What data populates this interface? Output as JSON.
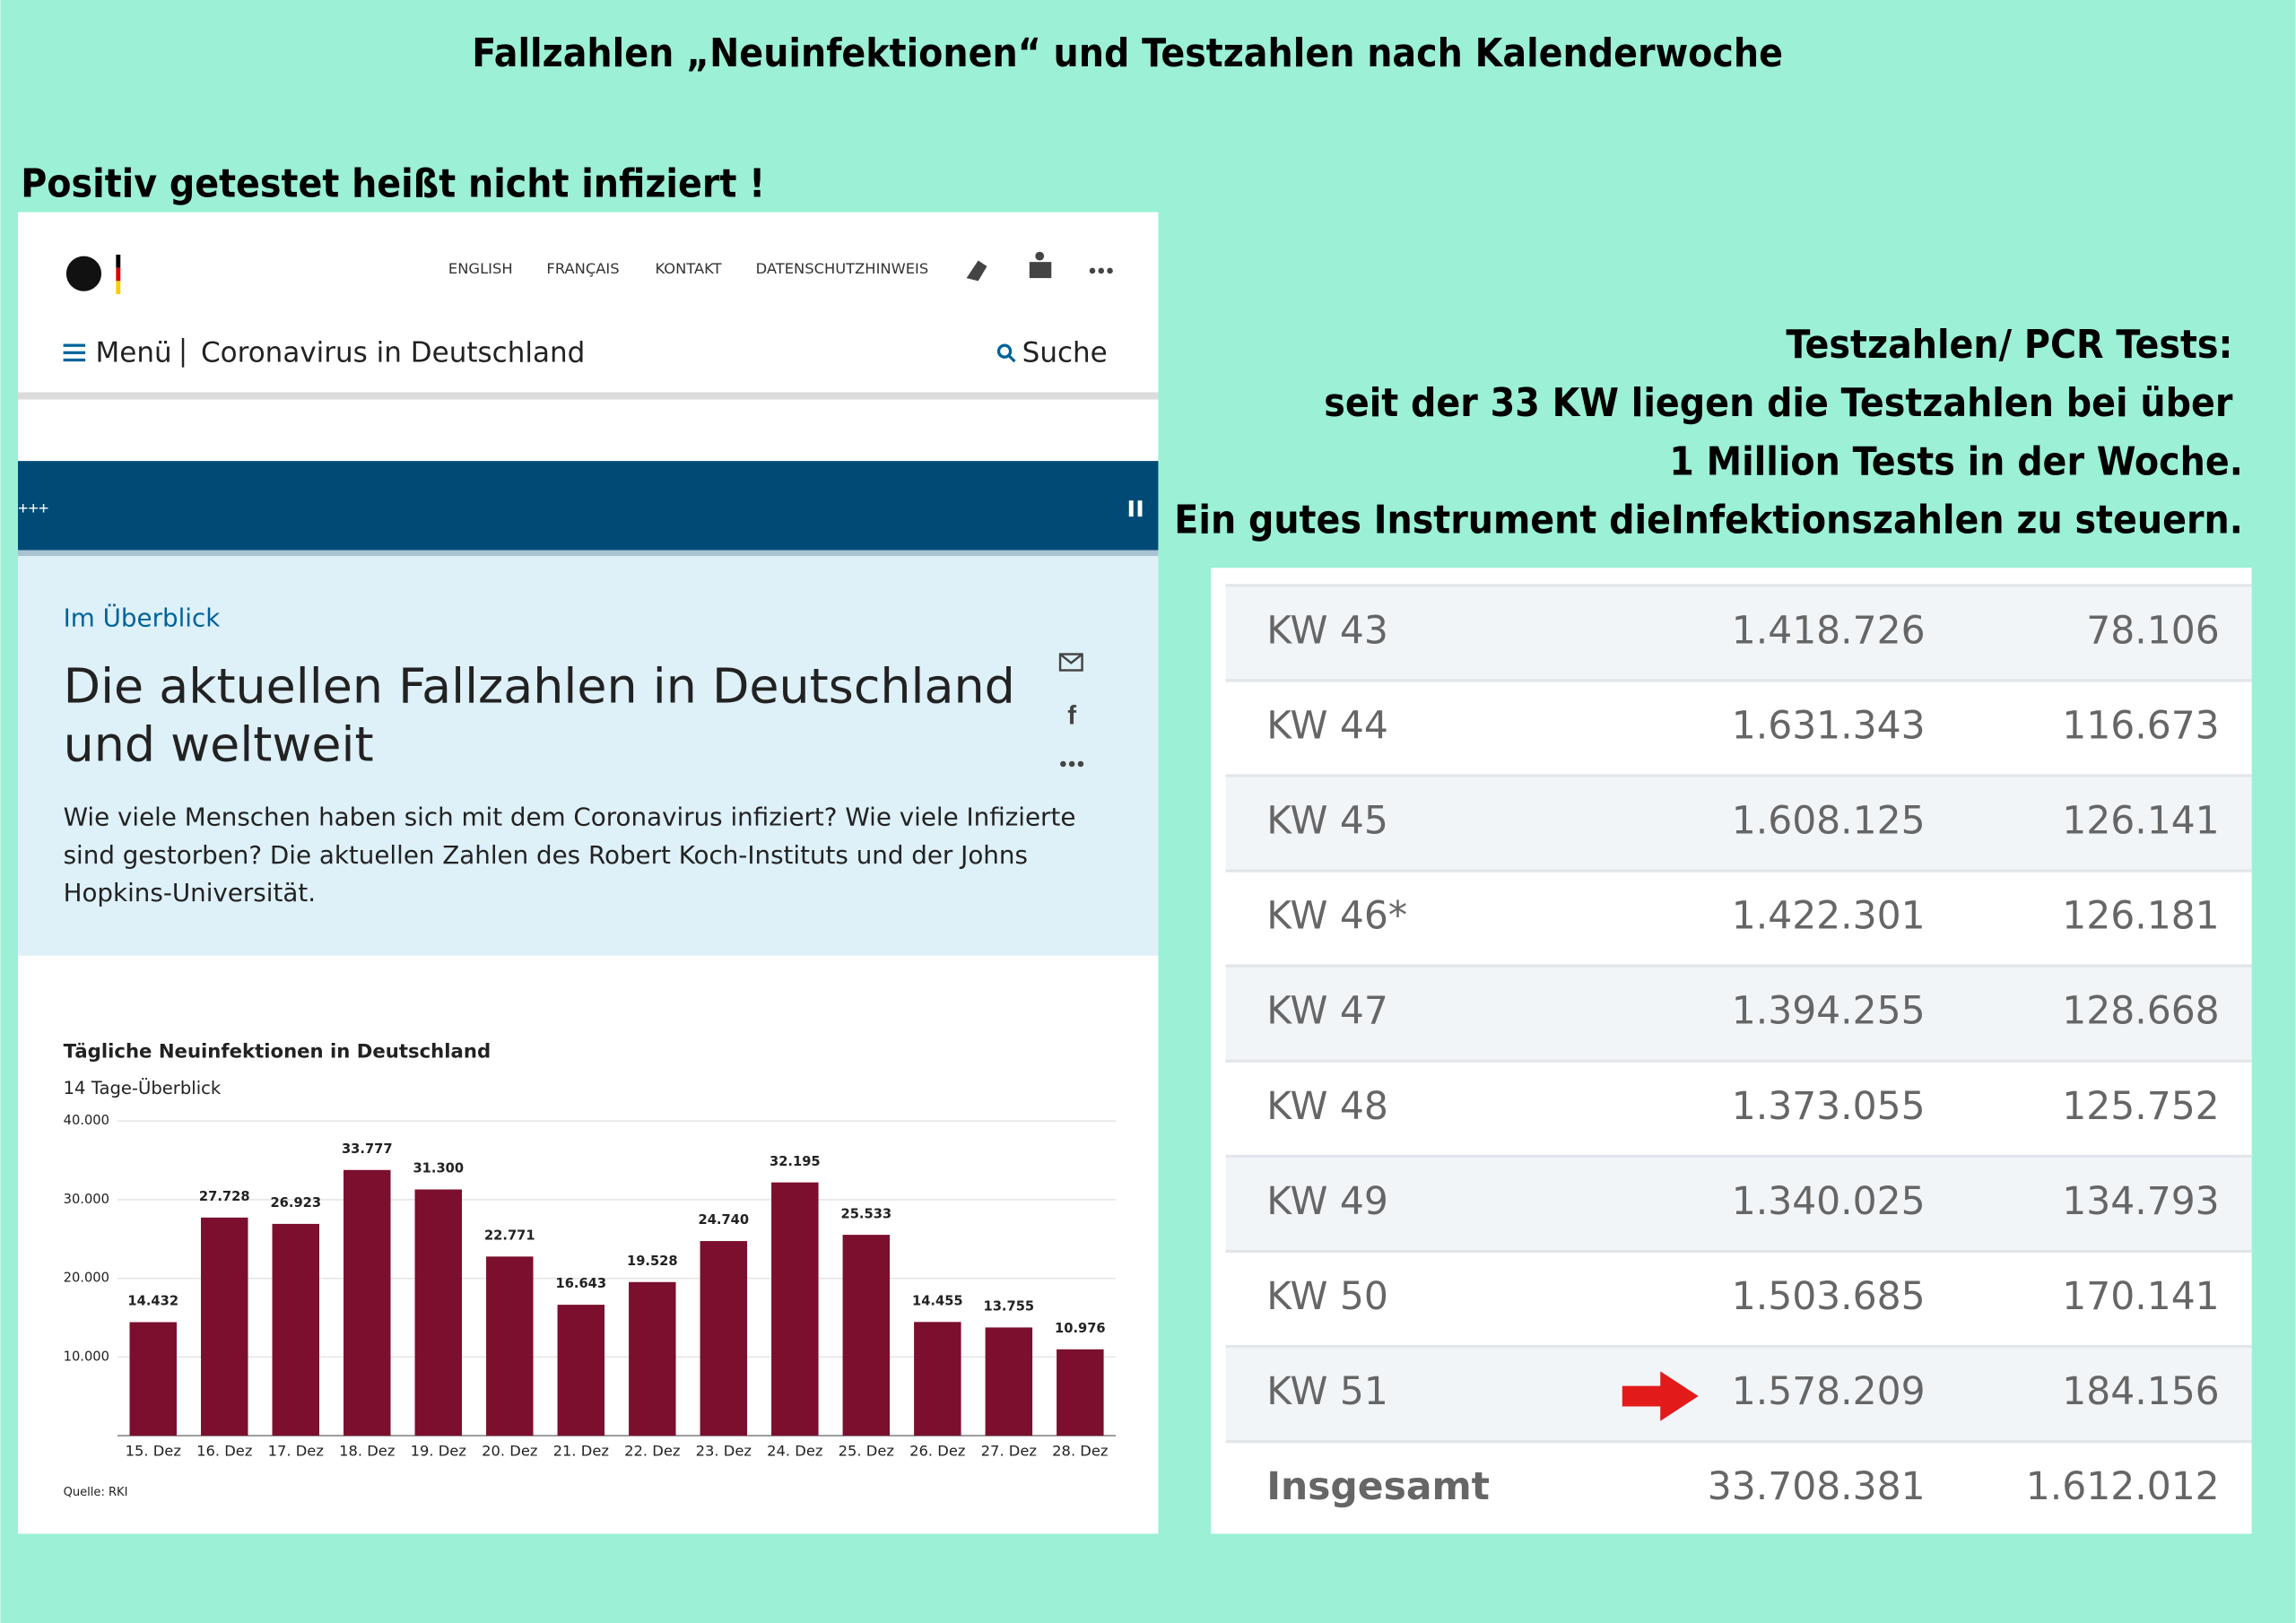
{
  "header": {
    "title": "Fallzahlen „Neuinfektionen“ und Testzahlen nach Kalenderwoche",
    "subtitle": "Positiv getestet heißt nicht infiziert !"
  },
  "website": {
    "nav": [
      "ENGLISH",
      "FRANÇAIS",
      "KONTAKT",
      "DATENSCHUTZHINWEIS"
    ],
    "menu": "Menü",
    "site_name": "Coronavirus in Deutschland",
    "search": "Suche",
    "ticker": "+++",
    "kicker": "Im Überblick",
    "heading": [
      "Die aktuellen Fallzahlen in Deutschland",
      "und weltweit"
    ],
    "intro": [
      "Wie viele Menschen haben sich mit dem Coronavirus infiziert? Wie viele Infizierte",
      "sind gestorben? Die aktuellen Zahlen des Robert Koch-Instituts und der Johns",
      "Hopkins-Universität."
    ]
  },
  "chart_data": {
    "type": "bar",
    "title": "Tägliche Neuinfektionen in Deutschland",
    "subtitle": "14 Tage-Überblick",
    "categories": [
      "15. Dez",
      "16. Dez",
      "17. Dez",
      "18. Dez",
      "19. Dez",
      "20. Dez",
      "21. Dez",
      "22. Dez",
      "23. Dez",
      "24. Dez",
      "25. Dez",
      "26. Dez",
      "27. Dez",
      "28. Dez"
    ],
    "values": [
      14432,
      27728,
      26923,
      33777,
      31300,
      22771,
      16643,
      19528,
      24740,
      32195,
      25533,
      14455,
      13755,
      10976
    ],
    "value_labels": [
      "14.432",
      "27.728",
      "26.923",
      "33.777",
      "31.300",
      "22.771",
      "16.643",
      "19.528",
      "24.740",
      "32.195",
      "25.533",
      "14.455",
      "13.755",
      "10.976"
    ],
    "color": "#7b0f2d",
    "ylim": [
      0,
      40000
    ],
    "yticks": [
      {
        "value": 10000,
        "label": "10.000"
      },
      {
        "value": 20000,
        "label": "20.000"
      },
      {
        "value": 30000,
        "label": "30.000"
      },
      {
        "value": 40000,
        "label": "40.000"
      }
    ],
    "grid": true,
    "source": "Quelle: RKI"
  },
  "note": [
    "Testzahlen/ PCR Tests:",
    "seit der 33 KW liegen die Testzahlen bei über",
    "1 Million Tests in der Woche.",
    "Ein gutes Instrument dieInfektionszahlen zu steuern."
  ],
  "table": {
    "rows": [
      [
        "KW 43",
        "1.418.726",
        "78.106"
      ],
      [
        "KW 44",
        "1.631.343",
        "116.673"
      ],
      [
        "KW 45",
        "1.608.125",
        "126.141"
      ],
      [
        "KW 46*",
        "1.422.301",
        "126.181"
      ],
      [
        "KW 47",
        "1.394.255",
        "128.668"
      ],
      [
        "KW 48",
        "1.373.055",
        "125.752"
      ],
      [
        "KW 49",
        "1.340.025",
        "134.793"
      ],
      [
        "KW 50",
        "1.503.685",
        "170.141"
      ],
      [
        "KW 51",
        "1.578.209",
        "184.156"
      ]
    ],
    "total": [
      "Insgesamt",
      "33.708.381",
      "1.612.012"
    ]
  }
}
